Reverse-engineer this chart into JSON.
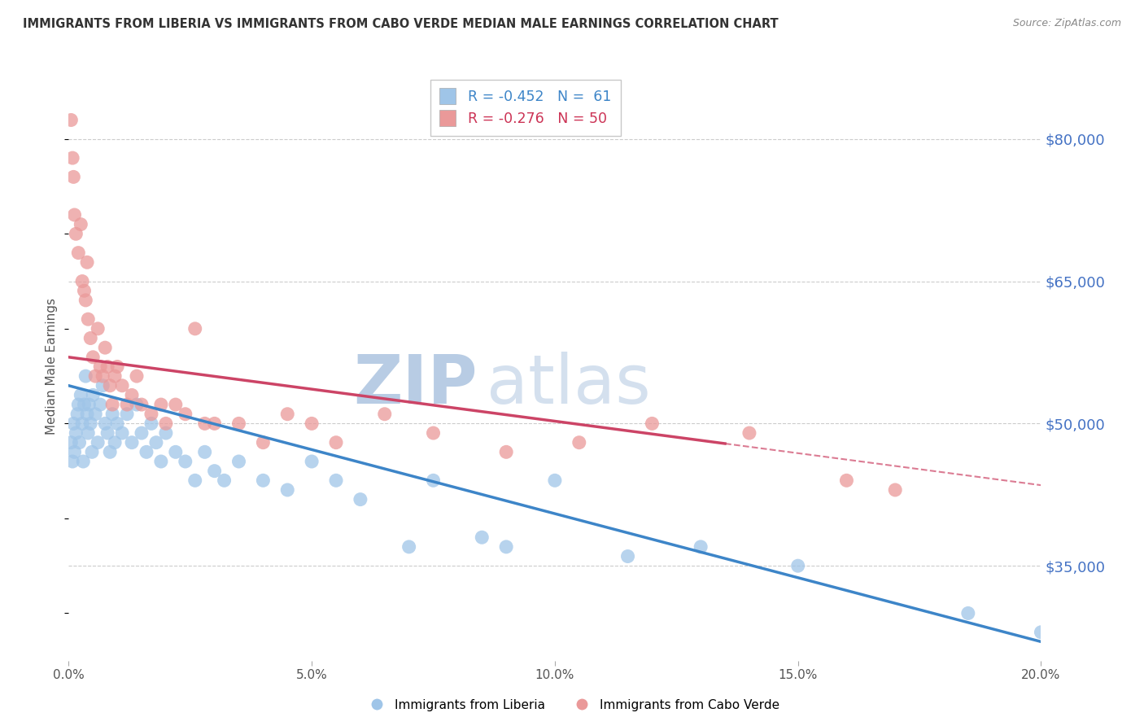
{
  "title": "IMMIGRANTS FROM LIBERIA VS IMMIGRANTS FROM CABO VERDE MEDIAN MALE EARNINGS CORRELATION CHART",
  "source": "Source: ZipAtlas.com",
  "ylabel": "Median Male Earnings",
  "ytick_labels": [
    "$80,000",
    "$65,000",
    "$50,000",
    "$35,000"
  ],
  "ytick_vals": [
    80000,
    65000,
    50000,
    35000
  ],
  "xlim": [
    0.0,
    20.0
  ],
  "ylim": [
    25000,
    87000
  ],
  "xlabel_vals": [
    0.0,
    5.0,
    10.0,
    15.0,
    20.0
  ],
  "legend_blue_R": "-0.452",
  "legend_blue_N": "61",
  "legend_pink_R": "-0.276",
  "legend_pink_N": "50",
  "label_liberia": "Immigrants from Liberia",
  "label_caboverde": "Immigrants from Cabo Verde",
  "scatter_blue_x": [
    0.05,
    0.08,
    0.1,
    0.12,
    0.15,
    0.18,
    0.2,
    0.22,
    0.25,
    0.28,
    0.3,
    0.32,
    0.35,
    0.38,
    0.4,
    0.42,
    0.45,
    0.48,
    0.5,
    0.55,
    0.6,
    0.65,
    0.7,
    0.75,
    0.8,
    0.85,
    0.9,
    0.95,
    1.0,
    1.1,
    1.2,
    1.3,
    1.4,
    1.5,
    1.6,
    1.7,
    1.8,
    1.9,
    2.0,
    2.2,
    2.4,
    2.6,
    2.8,
    3.0,
    3.2,
    3.5,
    4.0,
    4.5,
    5.0,
    5.5,
    6.0,
    7.0,
    7.5,
    8.5,
    9.0,
    10.0,
    11.5,
    13.0,
    15.0,
    18.5,
    20.0
  ],
  "scatter_blue_y": [
    48000,
    46000,
    50000,
    47000,
    49000,
    51000,
    52000,
    48000,
    53000,
    50000,
    46000,
    52000,
    55000,
    51000,
    49000,
    52000,
    50000,
    47000,
    53000,
    51000,
    48000,
    52000,
    54000,
    50000,
    49000,
    47000,
    51000,
    48000,
    50000,
    49000,
    51000,
    48000,
    52000,
    49000,
    47000,
    50000,
    48000,
    46000,
    49000,
    47000,
    46000,
    44000,
    47000,
    45000,
    44000,
    46000,
    44000,
    43000,
    46000,
    44000,
    42000,
    37000,
    44000,
    38000,
    37000,
    44000,
    36000,
    37000,
    35000,
    30000,
    28000
  ],
  "scatter_pink_x": [
    0.05,
    0.08,
    0.1,
    0.12,
    0.15,
    0.2,
    0.25,
    0.28,
    0.32,
    0.35,
    0.38,
    0.4,
    0.45,
    0.5,
    0.55,
    0.6,
    0.65,
    0.7,
    0.75,
    0.8,
    0.85,
    0.9,
    0.95,
    1.0,
    1.1,
    1.2,
    1.3,
    1.4,
    1.5,
    1.7,
    1.9,
    2.0,
    2.2,
    2.4,
    2.6,
    2.8,
    3.0,
    3.5,
    4.0,
    4.5,
    5.0,
    5.5,
    6.5,
    7.5,
    9.0,
    10.5,
    12.0,
    14.0,
    16.0,
    17.0
  ],
  "scatter_pink_y": [
    82000,
    78000,
    76000,
    72000,
    70000,
    68000,
    71000,
    65000,
    64000,
    63000,
    67000,
    61000,
    59000,
    57000,
    55000,
    60000,
    56000,
    55000,
    58000,
    56000,
    54000,
    52000,
    55000,
    56000,
    54000,
    52000,
    53000,
    55000,
    52000,
    51000,
    52000,
    50000,
    52000,
    51000,
    60000,
    50000,
    50000,
    50000,
    48000,
    51000,
    50000,
    48000,
    51000,
    49000,
    47000,
    48000,
    50000,
    49000,
    44000,
    43000
  ],
  "trendline_blue_x0": 0.0,
  "trendline_blue_x1": 20.0,
  "trendline_blue_y0": 54000,
  "trendline_blue_y1": 27000,
  "trendline_pink_x0": 0.0,
  "trendline_pink_x1": 20.0,
  "trendline_pink_y0": 57000,
  "trendline_pink_y1": 43500,
  "trendline_pink_solid_end": 13.5,
  "background_color": "#ffffff",
  "grid_color": "#cccccc",
  "blue_scatter_color": "#9fc5e8",
  "pink_scatter_color": "#ea9999",
  "blue_line_color": "#3d85c8",
  "pink_line_color": "#cc4466",
  "title_color": "#333333",
  "right_label_color": "#4472c4",
  "watermark_zip_color": "#b8cce4",
  "watermark_atlas_color": "#b8cce4"
}
